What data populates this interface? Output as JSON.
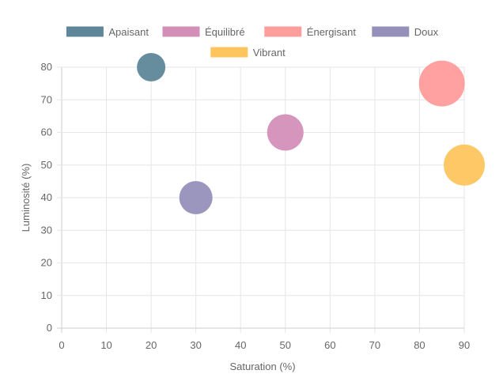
{
  "chart_data": {
    "type": "bubble",
    "xlabel": "Saturation (%)",
    "ylabel": "Luminosité (%)",
    "xlim": [
      0,
      90
    ],
    "ylim": [
      0,
      80
    ],
    "xticks": [
      0,
      10,
      20,
      30,
      40,
      50,
      60,
      70,
      80,
      90
    ],
    "yticks": [
      0,
      10,
      20,
      30,
      40,
      50,
      60,
      70,
      80
    ],
    "grid": true,
    "legend_position": "top",
    "series": [
      {
        "name": "Apaisant",
        "x": 20,
        "y": 80,
        "r": 18,
        "color": "#5e8799"
      },
      {
        "name": "Équilibré",
        "x": 50,
        "y": 60,
        "r": 23,
        "color": "#d38fb8"
      },
      {
        "name": "Énergisant",
        "x": 85,
        "y": 75,
        "r": 29,
        "color": "#ff9c9c"
      },
      {
        "name": "Doux",
        "x": 30,
        "y": 40,
        "r": 21,
        "color": "#9590ba"
      },
      {
        "name": "Vibrant",
        "x": 90,
        "y": 50,
        "r": 26,
        "color": "#fec55f"
      }
    ]
  }
}
